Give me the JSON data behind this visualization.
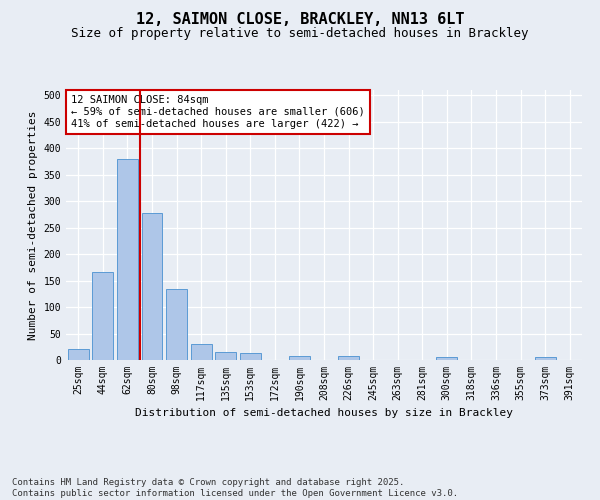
{
  "title_line1": "12, SAIMON CLOSE, BRACKLEY, NN13 6LT",
  "title_line2": "Size of property relative to semi-detached houses in Brackley",
  "xlabel": "Distribution of semi-detached houses by size in Brackley",
  "ylabel": "Number of semi-detached properties",
  "categories": [
    "25sqm",
    "44sqm",
    "62sqm",
    "80sqm",
    "98sqm",
    "117sqm",
    "135sqm",
    "153sqm",
    "172sqm",
    "190sqm",
    "208sqm",
    "226sqm",
    "245sqm",
    "263sqm",
    "281sqm",
    "300sqm",
    "318sqm",
    "336sqm",
    "355sqm",
    "373sqm",
    "391sqm"
  ],
  "values": [
    20,
    167,
    380,
    278,
    135,
    30,
    15,
    13,
    0,
    8,
    0,
    7,
    0,
    0,
    0,
    5,
    0,
    0,
    0,
    5,
    0
  ],
  "bar_color": "#aec6e8",
  "bar_edge_color": "#5b9bd5",
  "vline_color": "#cc0000",
  "annotation_text": "12 SAIMON CLOSE: 84sqm\n← 59% of semi-detached houses are smaller (606)\n41% of semi-detached houses are larger (422) →",
  "annotation_box_color": "#ffffff",
  "annotation_box_edge": "#cc0000",
  "ylim": [
    0,
    510
  ],
  "yticks": [
    0,
    50,
    100,
    150,
    200,
    250,
    300,
    350,
    400,
    450,
    500
  ],
  "background_color": "#e8edf4",
  "plot_bg_color": "#e8edf4",
  "footer_text": "Contains HM Land Registry data © Crown copyright and database right 2025.\nContains public sector information licensed under the Open Government Licence v3.0.",
  "title_fontsize": 11,
  "subtitle_fontsize": 9,
  "axis_label_fontsize": 8,
  "tick_fontsize": 7,
  "annotation_fontsize": 7.5,
  "footer_fontsize": 6.5
}
